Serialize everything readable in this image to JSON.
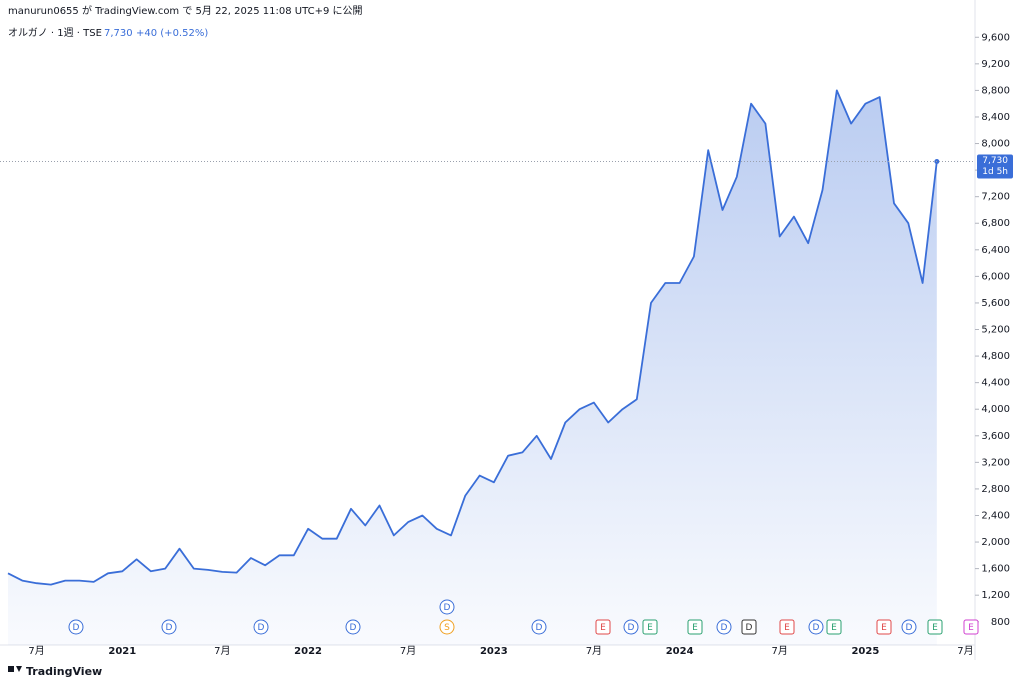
{
  "header": {
    "published": "manurun0655 が TradingView.com で 5月 22, 2025 11:08 UTC+9 に公開"
  },
  "chart_data": {
    "type": "area",
    "symbol": "オルガノ · 1週 · TSE",
    "change": "+40 (+0.52%)",
    "last_price": {
      "value": 7730,
      "label": "7,730"
    },
    "countdown": "1d 5h",
    "color": "#3a6ed8",
    "categories": [
      null,
      null,
      "7月",
      null,
      null,
      null,
      null,
      null,
      "2021",
      null,
      null,
      null,
      null,
      null,
      null,
      "7月",
      null,
      null,
      null,
      null,
      null,
      "2022",
      null,
      null,
      null,
      null,
      null,
      null,
      "7月",
      null,
      null,
      null,
      null,
      null,
      "2023",
      null,
      null,
      null,
      null,
      null,
      null,
      "7月",
      null,
      null,
      null,
      null,
      null,
      "2024",
      null,
      null,
      null,
      null,
      null,
      null,
      "7月",
      null,
      null,
      null,
      null,
      null,
      "2025",
      null,
      null,
      null,
      null,
      null,
      null,
      "7月"
    ],
    "values": [
      1530,
      1420,
      1380,
      1360,
      1420,
      1420,
      1400,
      1530,
      1560,
      1740,
      1560,
      1600,
      1900,
      1600,
      1580,
      1550,
      1540,
      1760,
      1650,
      1800,
      1800,
      2200,
      2050,
      2050,
      2500,
      2250,
      2550,
      2100,
      2300,
      2400,
      2200,
      2100,
      2700,
      3000,
      2900,
      3300,
      3350,
      3600,
      3250,
      3800,
      4000,
      4100,
      3800,
      4000,
      4150,
      5600,
      5900,
      5900,
      6300,
      7900,
      7000,
      7500,
      8600,
      8300,
      6600,
      6900,
      6500,
      7300,
      8800,
      8300,
      8600,
      8700,
      7100,
      6800,
      5900,
      7730,
      null,
      null
    ],
    "ylim": [
      450,
      9830
    ],
    "yticks": [
      {
        "value": 800,
        "label": "800"
      },
      {
        "value": 1200,
        "label": "1,200"
      },
      {
        "value": 1600,
        "label": "1,600"
      },
      {
        "value": 2000,
        "label": "2,000"
      },
      {
        "value": 2400,
        "label": "2,400"
      },
      {
        "value": 2800,
        "label": "2,800"
      },
      {
        "value": 3200,
        "label": "3,200"
      },
      {
        "value": 3600,
        "label": "3,600"
      },
      {
        "value": 4000,
        "label": "4,000"
      },
      {
        "value": 4400,
        "label": "4,400"
      },
      {
        "value": 4800,
        "label": "4,800"
      },
      {
        "value": 5200,
        "label": "5,200"
      },
      {
        "value": 5600,
        "label": "5,600"
      },
      {
        "value": 6000,
        "label": "6,000"
      },
      {
        "value": 6400,
        "label": "6,400"
      },
      {
        "value": 6800,
        "label": "6,800"
      },
      {
        "value": 7200,
        "label": "7,200"
      },
      {
        "value": 7600,
        "label": "7,600"
      },
      {
        "value": 8000,
        "label": "8,000"
      },
      {
        "value": 8400,
        "label": "8,400"
      },
      {
        "value": 8800,
        "label": "8,800"
      },
      {
        "value": 9200,
        "label": "9,200"
      },
      {
        "value": 9600,
        "label": "9,600"
      }
    ],
    "events": [
      {
        "label": "D",
        "color": "#3a6ed8"
      },
      {
        "label": "D",
        "color": "#3a6ed8"
      },
      {
        "label": "D",
        "color": "#3a6ed8"
      },
      {
        "label": "D",
        "color": "#3a6ed8"
      },
      {
        "label": "D",
        "color": "#3a6ed8"
      },
      {
        "label": "S",
        "color": "#f0a020"
      },
      {
        "label": "D",
        "color": "#3a6ed8"
      },
      {
        "label": "E",
        "color": "#e04848"
      },
      {
        "label": "D",
        "color": "#3a6ed8"
      },
      {
        "label": "E",
        "color": "#2aa070"
      },
      {
        "label": "E",
        "color": "#2aa070"
      },
      {
        "label": "D",
        "color": "#3a6ed8"
      },
      {
        "label": "D",
        "color": "#333333"
      },
      {
        "label": "E",
        "color": "#e04848"
      },
      {
        "label": "D",
        "color": "#3a6ed8"
      },
      {
        "label": "E",
        "color": "#2aa070"
      },
      {
        "label": "E",
        "color": "#e04848"
      },
      {
        "label": "D",
        "color": "#3a6ed8"
      },
      {
        "label": "E",
        "color": "#2aa070"
      },
      {
        "label": "E",
        "color": "#d040d0"
      }
    ]
  },
  "footer": {
    "brand": "TradingView"
  }
}
